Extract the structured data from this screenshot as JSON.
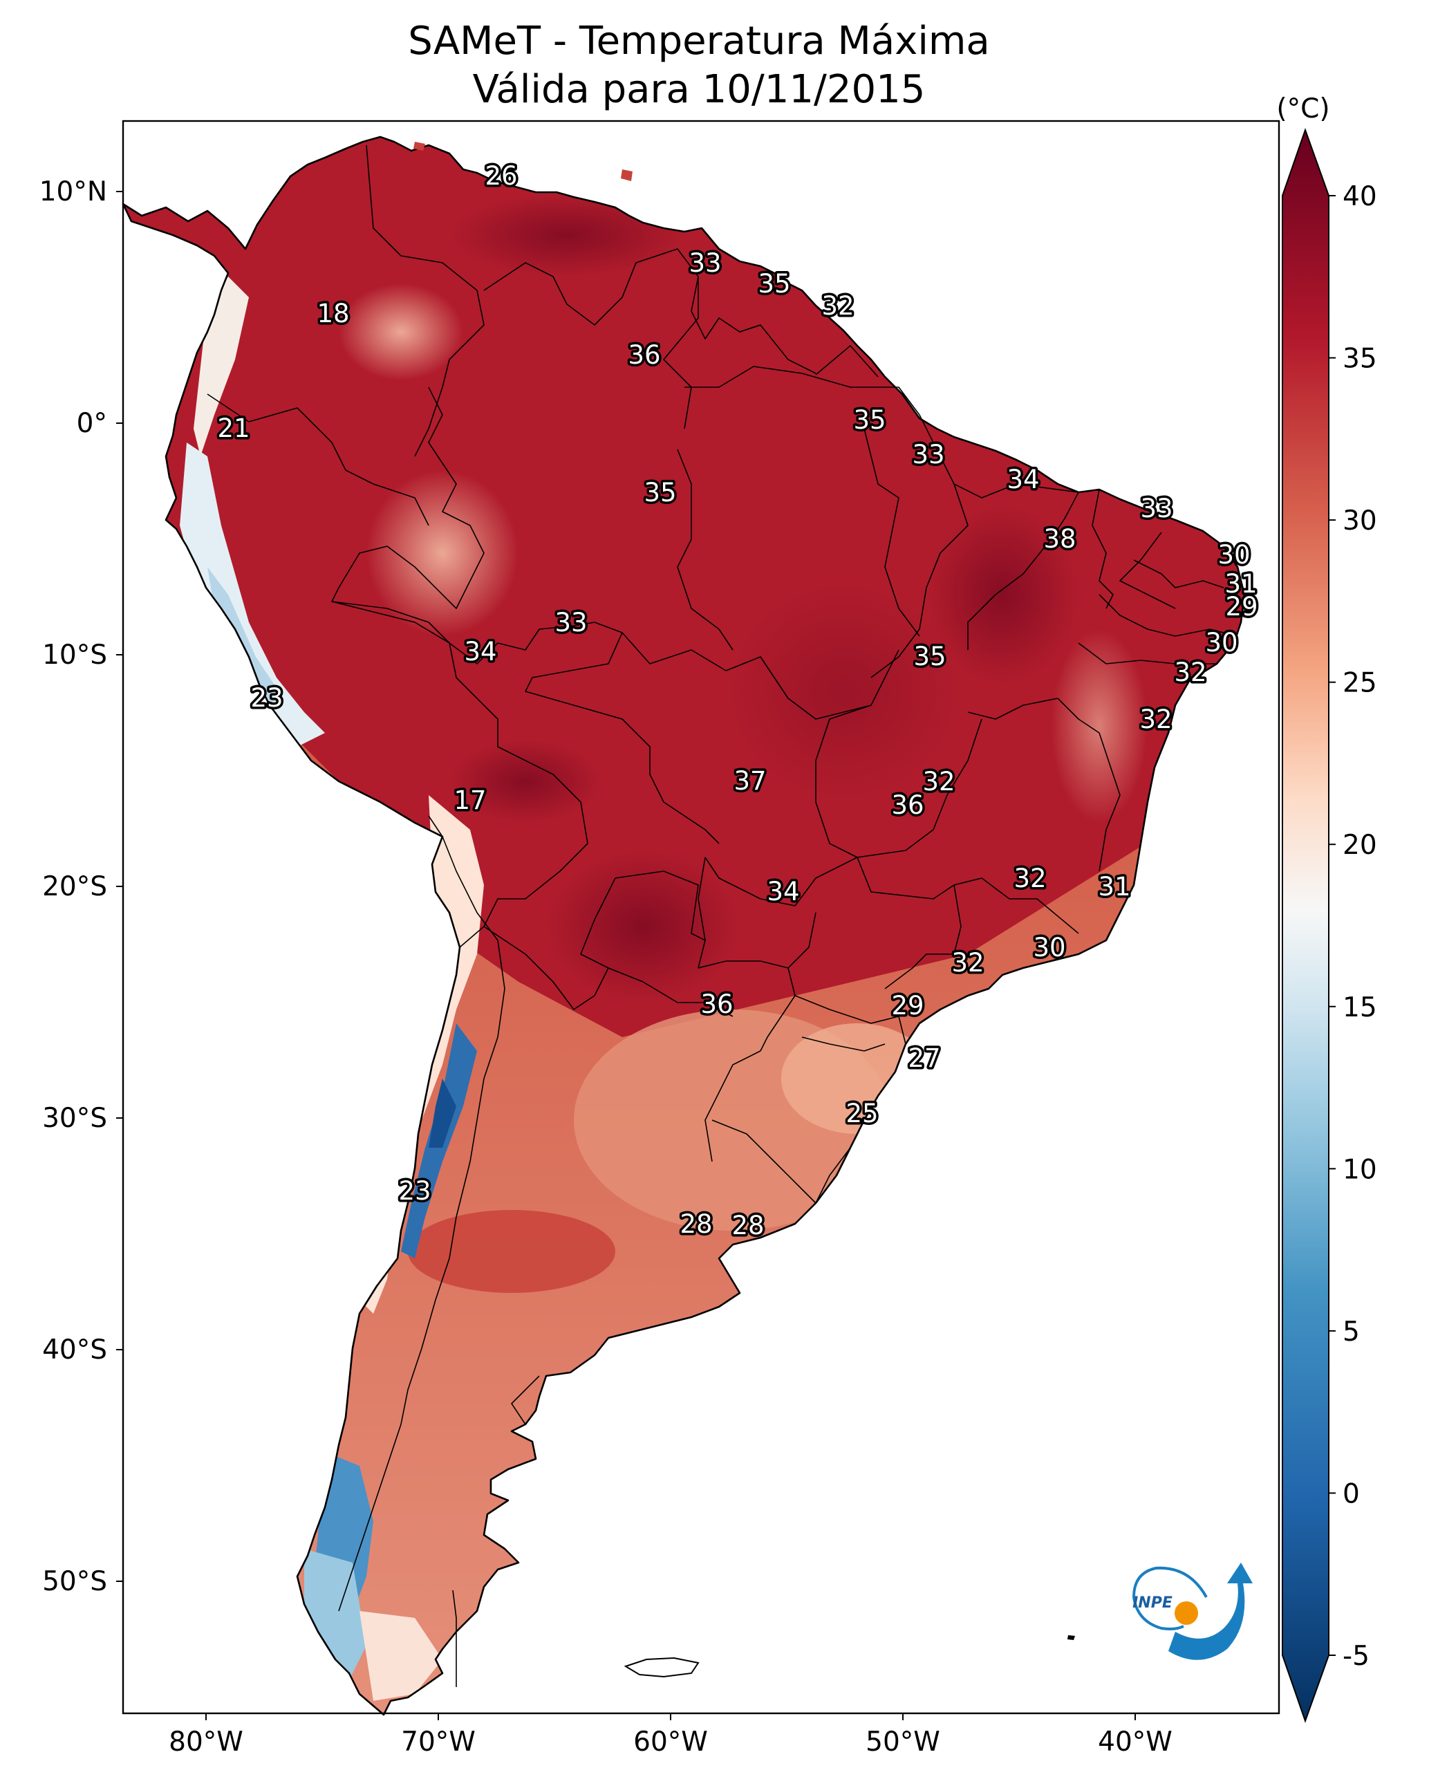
{
  "title": {
    "line1": "SAMeT - Temperatura Máxima",
    "line2": "Válida para 10/11/2015"
  },
  "colorbar": {
    "unit_label": "(°C)",
    "ticks": [
      40,
      35,
      30,
      25,
      20,
      15,
      10,
      5,
      0,
      -5
    ],
    "tick_labels": [
      "40",
      "35",
      "30",
      "25",
      "20",
      "15",
      "10",
      "5",
      "0",
      "-5"
    ],
    "vmin": -7,
    "vmax": 42,
    "colors": [
      "#053061",
      "#2166ac",
      "#4393c3",
      "#92c5de",
      "#d1e5f0",
      "#f7f7f7",
      "#fddbc7",
      "#f4a582",
      "#d6604d",
      "#b2182b",
      "#67001f"
    ]
  },
  "axes": {
    "lat_labels": [
      "10°N",
      "0°",
      "10°S",
      "20°S",
      "30°S",
      "40°S",
      "50°S"
    ],
    "lon_labels": [
      "80°W",
      "70°W",
      "60°W",
      "50°W",
      "40°W"
    ]
  },
  "contour_labels": [
    "26",
    "18",
    "33",
    "35",
    "32",
    "36",
    "21",
    "35",
    "33",
    "35",
    "34",
    "33",
    "38",
    "30",
    "31",
    "29",
    "33",
    "34",
    "35",
    "30",
    "32",
    "23",
    "32",
    "37",
    "32",
    "17",
    "36",
    "34",
    "32",
    "31",
    "30",
    "32",
    "36",
    "29",
    "27",
    "25",
    "23",
    "28",
    "28"
  ],
  "logo": {
    "text": "INPE",
    "colors": {
      "blue": "#1a7fc1",
      "orange": "#f39200"
    }
  }
}
